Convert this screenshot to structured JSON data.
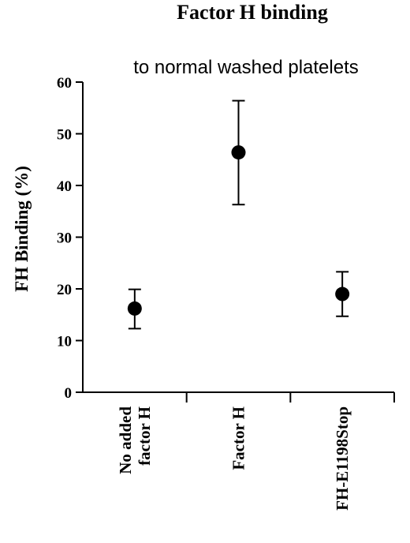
{
  "chart_data": {
    "type": "scatter",
    "title": "Factor H binding",
    "subtitle": "to normal washed platelets",
    "ylabel": "FH Binding (%)",
    "xlabel": "",
    "ylim": [
      0,
      60
    ],
    "yticks": [
      "0",
      "10",
      "20",
      "30",
      "40",
      "50",
      "60"
    ],
    "grid": false,
    "categories": [
      [
        "No added",
        "factor H"
      ],
      [
        "Factor H"
      ],
      [
        "FH-E1198Stop"
      ]
    ],
    "series": [
      {
        "values": [
          16.2,
          46.4,
          19.0
        ],
        "error_low": [
          12.3,
          36.3,
          14.7
        ],
        "error_high": [
          19.9,
          56.4,
          23.3
        ]
      }
    ],
    "marker_color": "#000000"
  }
}
